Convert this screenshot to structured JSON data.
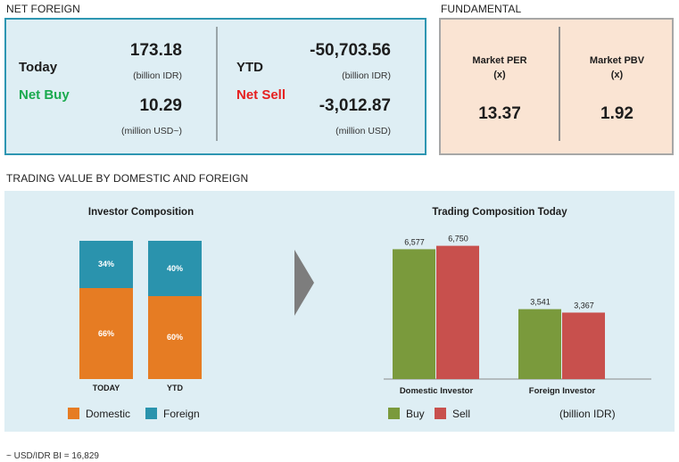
{
  "net_foreign": {
    "title": "NET FOREIGN",
    "today": {
      "label": "Today",
      "status": "Net Buy",
      "idr_value": "173.18",
      "idr_unit": "(billion IDR)",
      "usd_value": "10.29",
      "usd_unit": "(million USD~)"
    },
    "ytd": {
      "label": "YTD",
      "status": "Net Sell",
      "idr_value": "-50,703.56",
      "idr_unit": "(billion IDR)",
      "usd_value": "-3,012.87",
      "usd_unit": "(million USD)"
    },
    "colors": {
      "buy": "#1aaa4e",
      "sell": "#e62020"
    }
  },
  "fundamental": {
    "title": "FUNDAMENTAL",
    "per": {
      "label_line1": "Market PER",
      "label_line2": "(x)",
      "value": "13.37"
    },
    "pbv": {
      "label_line1": "Market PBV",
      "label_line2": "(x)",
      "value": "1.92"
    }
  },
  "trading": {
    "title": "TRADING VALUE BY DOMESTIC AND FOREIGN",
    "investor_composition": {
      "title": "Investor Composition",
      "legend": {
        "domestic": "Domestic",
        "foreign": "Foreign"
      }
    },
    "trading_composition": {
      "title": "Trading Composition Today",
      "legend": {
        "buy": "Buy",
        "sell": "Sell"
      },
      "unit": "(billion IDR)"
    }
  },
  "chart_data": [
    {
      "type": "bar",
      "stacked": true,
      "title": "Investor Composition",
      "categories": [
        "TODAY",
        "YTD"
      ],
      "series": [
        {
          "name": "Domestic",
          "values": [
            66,
            60
          ],
          "labels": [
            "66%",
            "60%"
          ],
          "color": "#e67c23"
        },
        {
          "name": "Foreign",
          "values": [
            34,
            40
          ],
          "labels": [
            "34%",
            "40%"
          ],
          "color": "#2a93ad"
        }
      ],
      "ylim": [
        0,
        100
      ]
    },
    {
      "type": "bar",
      "title": "Trading Composition Today",
      "categories": [
        "Domestic Investor",
        "Foreign Investor"
      ],
      "series": [
        {
          "name": "Buy",
          "values": [
            6577,
            3541
          ],
          "labels": [
            "6,577",
            "3,541"
          ],
          "color": "#7a9a3c"
        },
        {
          "name": "Sell",
          "values": [
            6750,
            3367
          ],
          "labels": [
            "6,750",
            "3,367"
          ],
          "color": "#c8504d"
        }
      ],
      "ylim": [
        0,
        7500
      ]
    }
  ],
  "footnote": "~ USD/IDR BI = 16,829"
}
